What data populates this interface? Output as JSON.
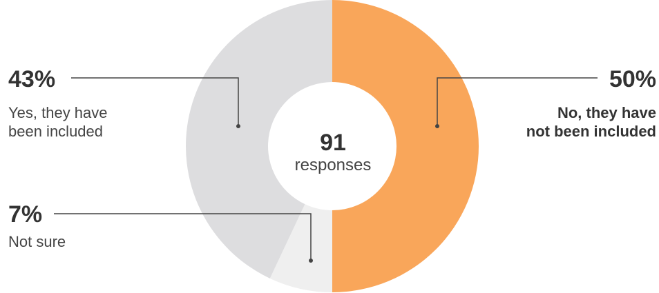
{
  "chart_data": {
    "type": "pie",
    "donut": true,
    "categories": [
      "No, they have\nnot been included",
      "Not sure",
      "Yes, they have\nbeen included"
    ],
    "values": [
      50,
      7,
      43
    ],
    "value_labels": [
      "50%",
      "7%",
      "43%"
    ],
    "colors": [
      "#f9a65a",
      "#efefef",
      "#dddddf"
    ],
    "center_value": "91",
    "center_label": "responses"
  }
}
